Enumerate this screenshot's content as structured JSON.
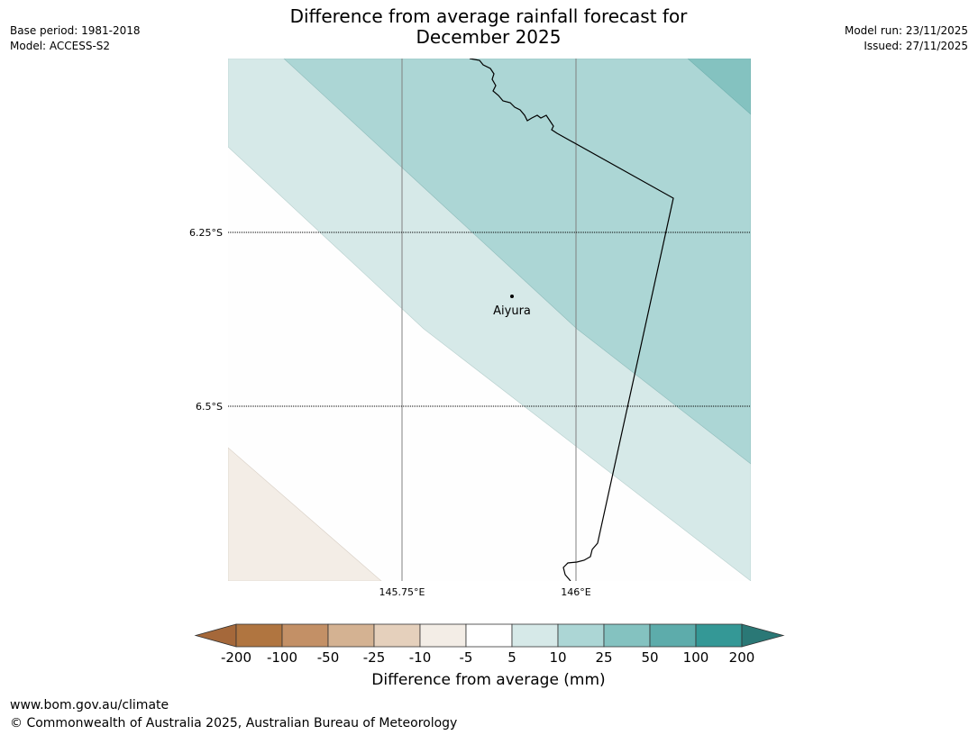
{
  "header": {
    "title_line1": "Difference from average rainfall forecast for",
    "title_line2": "December 2025",
    "base_period": "Base period: 1981-2018",
    "model": "Model: ACCESS-S2",
    "model_run": "Model run: 23/11/2025",
    "issued": "Issued: 27/11/2025"
  },
  "map": {
    "lat_labels": [
      "6.25°S",
      "6.5°S"
    ],
    "lon_labels": [
      "145.75°E",
      "146°E"
    ],
    "place": {
      "name": "Aiyura",
      "lat": -6.35,
      "lon": 145.9
    }
  },
  "colorbar": {
    "title": "Difference from average (mm)",
    "tick_labels": [
      "-200",
      "-100",
      "-50",
      "-25",
      "-10",
      "-5",
      "5",
      "10",
      "25",
      "50",
      "100",
      "200"
    ],
    "colors": [
      "#a5683a",
      "#b07540",
      "#c39066",
      "#d4b292",
      "#e5d0bc",
      "#f3ede6",
      "#ffffff",
      "#d6e9e8",
      "#acd6d5",
      "#84c2c0",
      "#5dacab",
      "#349896",
      "#2a7876"
    ]
  },
  "footer": {
    "url": "www.bom.gov.au/climate",
    "copyright": "© Commonwealth of Australia 2025, Australian Bureau of Meteorology"
  }
}
